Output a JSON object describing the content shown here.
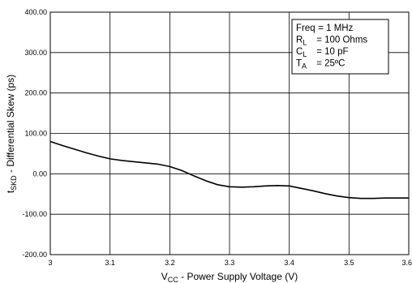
{
  "chart_data": {
    "type": "line",
    "title": "",
    "xlabel": {
      "main": "V",
      "sub": "CC",
      "rest": " - Power Supply Voltage (V)"
    },
    "ylabel": {
      "main": "t",
      "sub": "SKD",
      "rest": " - Differential Skew (ps)"
    },
    "xlim": [
      3.0,
      3.6
    ],
    "ylim": [
      -200,
      400
    ],
    "x_ticks": [
      3.0,
      3.1,
      3.2,
      3.3,
      3.4,
      3.5,
      3.6
    ],
    "x_tick_labels": [
      "3",
      "3.1",
      "3.2",
      "3.3",
      "3.4",
      "3.5",
      "3.6"
    ],
    "y_ticks": [
      400,
      300,
      200,
      100,
      0,
      -100,
      -200
    ],
    "y_tick_labels": [
      "400.00",
      "300.00",
      "200.00",
      "100.00",
      "0.00",
      "-100.00",
      "-200.00"
    ],
    "grid": true,
    "legend_position": "top-right",
    "conditions": [
      {
        "main": "Freq",
        "sub": "",
        "value": " = 1 MHz"
      },
      {
        "main": "R",
        "sub": "L",
        "value": " = 100 Ohms"
      },
      {
        "main": "C",
        "sub": "L",
        "value": " = 10 pF"
      },
      {
        "main": "T",
        "sub": "A",
        "value": " = 25ºC"
      }
    ],
    "line_color": "#000000",
    "series": [
      {
        "x": [
          3.0,
          3.02,
          3.04,
          3.06,
          3.08,
          3.1,
          3.12,
          3.14,
          3.16,
          3.18,
          3.2,
          3.22,
          3.24,
          3.26,
          3.28,
          3.3,
          3.32,
          3.34,
          3.36,
          3.38,
          3.4,
          3.42,
          3.44,
          3.46,
          3.48,
          3.5,
          3.52,
          3.54,
          3.56,
          3.58,
          3.6
        ],
        "values": [
          80,
          70,
          61,
          52,
          44,
          37,
          33,
          30,
          27,
          24,
          18,
          8,
          -5,
          -17,
          -27,
          -32,
          -33,
          -32,
          -30,
          -29,
          -30,
          -36,
          -42,
          -49,
          -55,
          -59,
          -61,
          -61,
          -60,
          -60,
          -60
        ]
      }
    ]
  }
}
